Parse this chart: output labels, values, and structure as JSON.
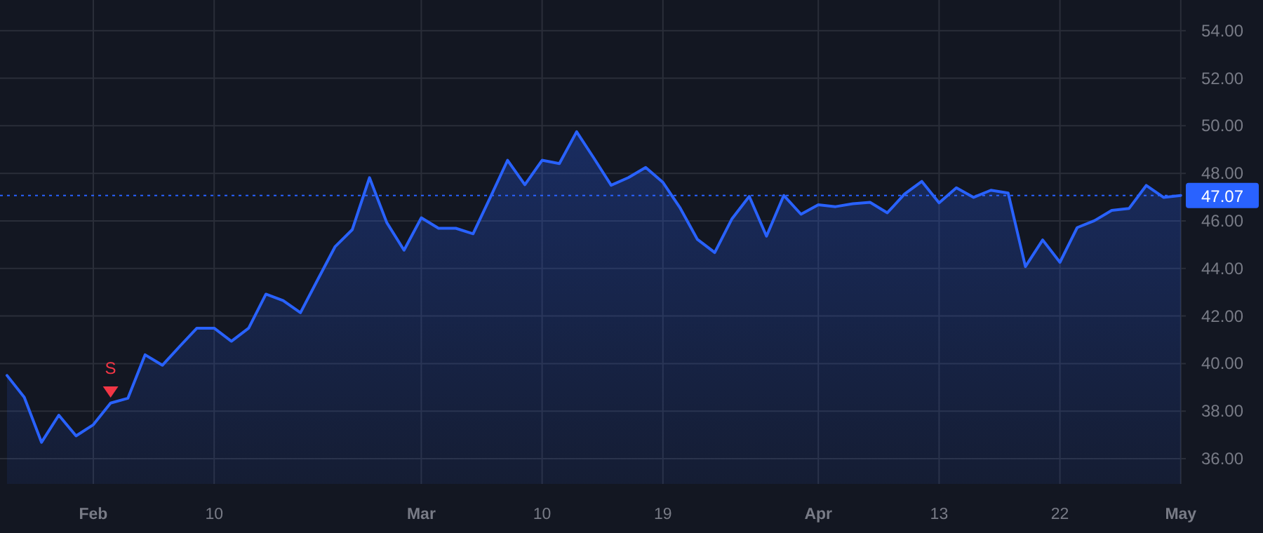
{
  "chart_data": {
    "type": "area",
    "categories": [
      null,
      null,
      null,
      null,
      null,
      "Feb",
      null,
      null,
      null,
      null,
      null,
      null,
      "10",
      null,
      null,
      null,
      null,
      null,
      null,
      null,
      null,
      null,
      null,
      null,
      "Mar",
      null,
      null,
      null,
      null,
      null,
      null,
      "10",
      null,
      null,
      null,
      null,
      null,
      null,
      "19",
      null,
      null,
      null,
      null,
      null,
      null,
      null,
      null,
      "Apr",
      null,
      null,
      null,
      null,
      null,
      null,
      "13",
      null,
      null,
      null,
      null,
      null,
      null,
      "22",
      null,
      null,
      null,
      null,
      null,
      null,
      "May"
    ],
    "series": [
      {
        "color": "#2962ff",
        "values": [
          39.5,
          38.58,
          36.69,
          37.83,
          36.96,
          37.43,
          38.34,
          38.54,
          40.37,
          39.93,
          40.72,
          41.49,
          41.49,
          40.94,
          41.49,
          42.92,
          42.65,
          42.14,
          43.53,
          44.91,
          45.63,
          47.82,
          45.93,
          44.77,
          46.13,
          45.69,
          45.69,
          45.46,
          46.99,
          48.55,
          47.52,
          48.55,
          48.41,
          49.75,
          48.64,
          47.5,
          47.82,
          48.25,
          47.62,
          46.54,
          45.22,
          44.67,
          46.09,
          47.03,
          45.36,
          47.07,
          46.28,
          46.68,
          46.6,
          46.72,
          46.78,
          46.34,
          47.13,
          47.66,
          46.76,
          47.39,
          46.99,
          47.29,
          47.17,
          44.08,
          45.2,
          44.26,
          45.72,
          46.01,
          46.44,
          46.52,
          47.49,
          46.99,
          47.07
        ]
      },
      {
        "type": "scatter",
        "color": "#f23645",
        "marker": "triangle",
        "values": [
          null,
          null,
          null,
          null,
          null,
          null,
          38.8,
          null,
          null,
          null,
          null,
          null,
          null,
          null,
          null,
          null,
          null,
          null,
          null,
          null,
          null,
          null,
          null,
          null,
          null,
          null,
          null,
          null,
          null,
          null,
          null,
          null,
          null,
          null,
          null,
          null,
          null,
          null,
          null,
          null,
          null,
          null,
          null,
          null,
          null,
          null,
          null,
          null,
          null,
          null,
          null,
          null,
          null,
          null,
          null,
          null,
          null,
          null,
          null,
          null,
          null,
          null,
          null,
          null,
          null,
          null,
          null,
          null,
          null
        ]
      }
    ],
    "annotations": [
      "S"
    ],
    "ylim": [
      34.94,
      55.29
    ],
    "yticks": [
      {
        "value": 36,
        "label": "36.00"
      },
      {
        "value": 38,
        "label": "38.00"
      },
      {
        "value": 40,
        "label": "40.00"
      },
      {
        "value": 42,
        "label": "42.00"
      },
      {
        "value": 44,
        "label": "44.00"
      },
      {
        "value": 46,
        "label": "46.00"
      },
      {
        "value": 48,
        "label": "48.00"
      },
      {
        "value": 50,
        "label": "50.00"
      },
      {
        "value": 52,
        "label": "52.00"
      },
      {
        "value": 54,
        "label": "54.00"
      }
    ],
    "grid": true,
    "ref_lines": [
      {
        "axis": "y",
        "value": 47.07,
        "label": "47.07",
        "color": "#2962ff",
        "line_style": "dotted"
      }
    ]
  }
}
